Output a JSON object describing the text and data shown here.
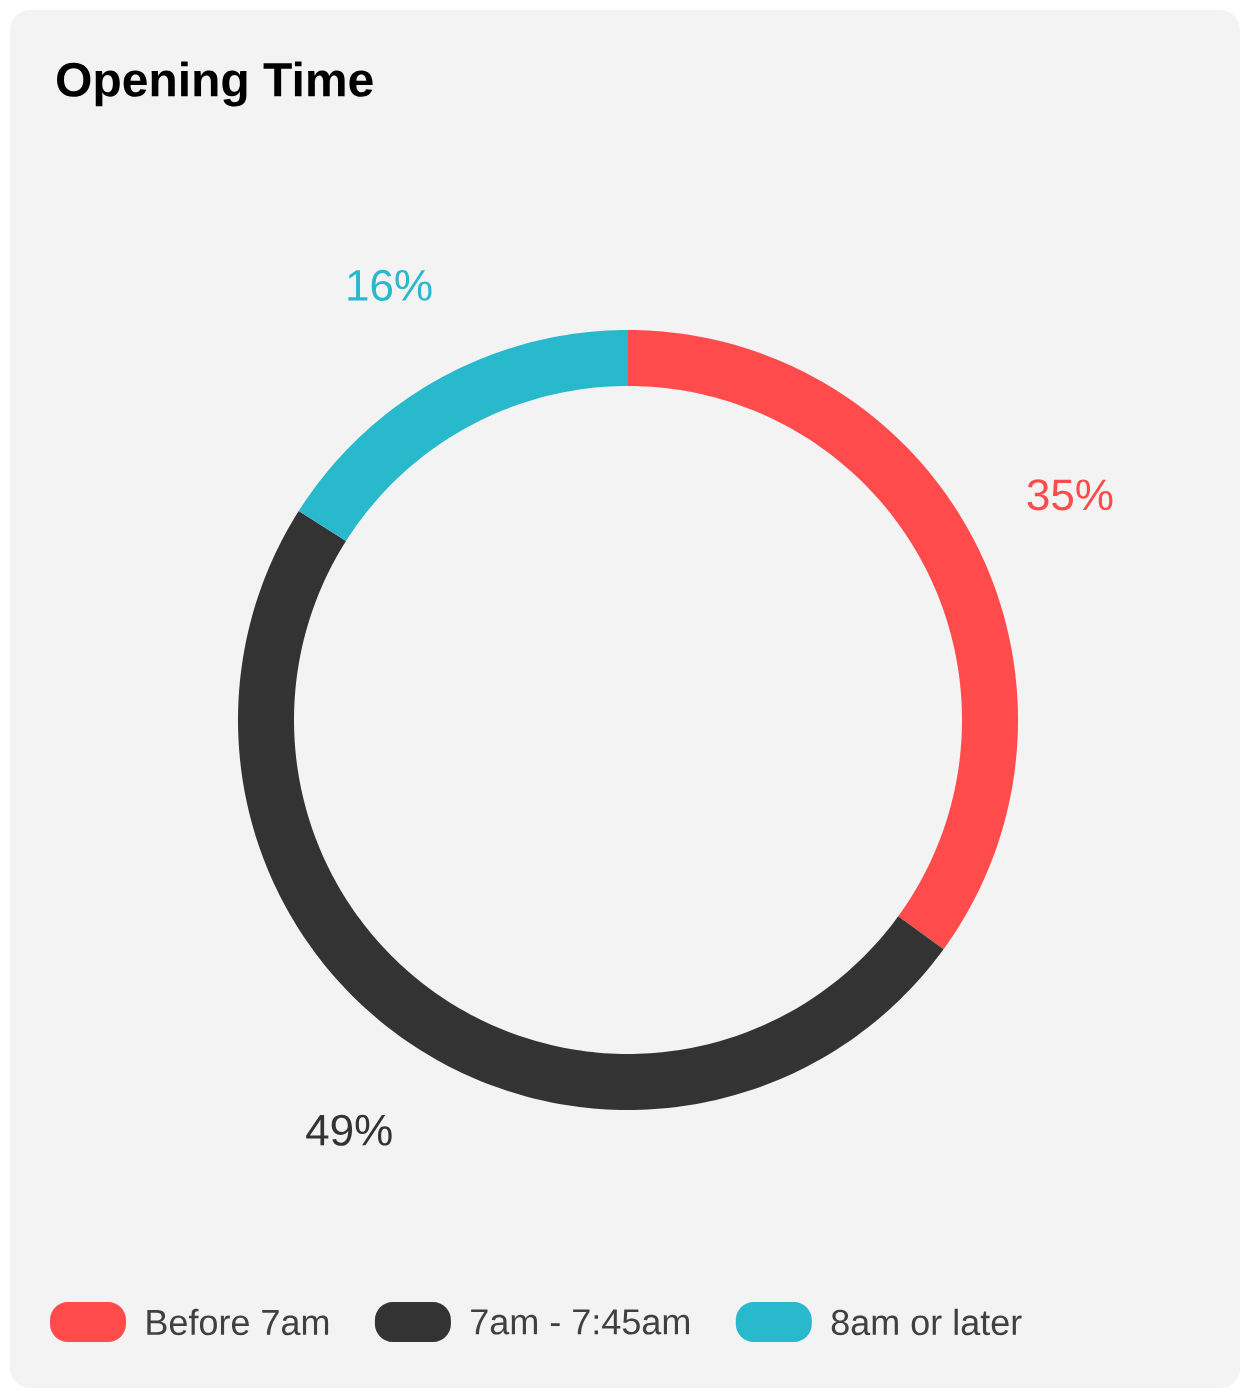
{
  "chart_data": {
    "type": "donut",
    "title": "Opening Time",
    "categories": [
      "Before 7am",
      "7am - 7:45am",
      "8am or later"
    ],
    "values": [
      35,
      49,
      16
    ],
    "colors": [
      "#ff4b4b",
      "#333333",
      "#29b9cc"
    ],
    "value_labels": [
      "35%",
      "49%",
      "16%"
    ],
    "legend": "bottom"
  }
}
